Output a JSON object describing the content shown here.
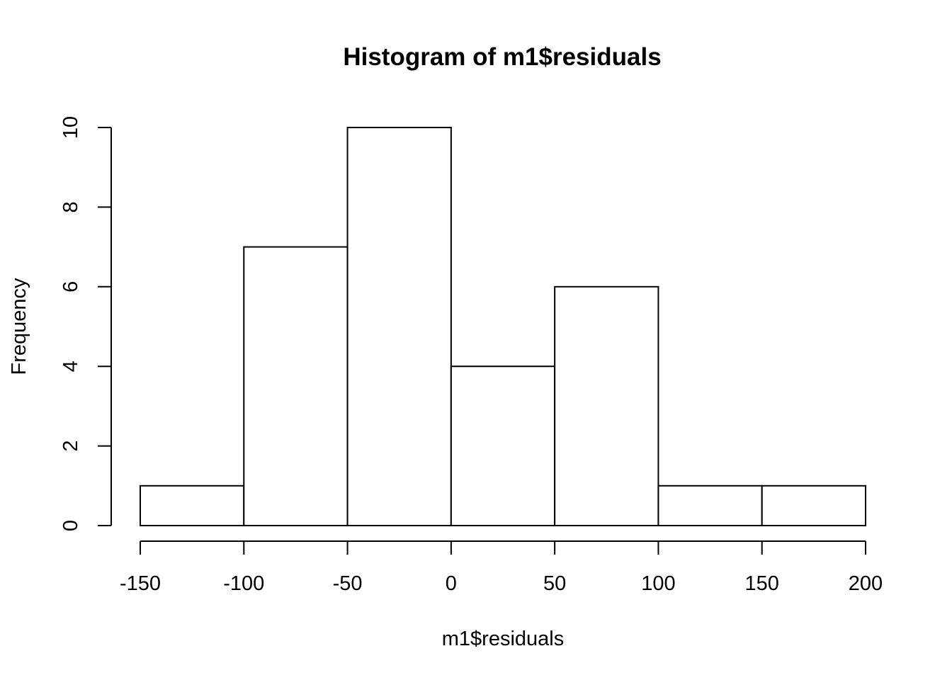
{
  "chart_data": {
    "type": "bar",
    "title": "Histogram of m1$residuals",
    "xlabel": "m1$residuals",
    "ylabel": "Frequency",
    "bins": [
      {
        "start": -150,
        "end": -100,
        "count": 1
      },
      {
        "start": -100,
        "end": -50,
        "count": 7
      },
      {
        "start": -50,
        "end": 0,
        "count": 10
      },
      {
        "start": 0,
        "end": 50,
        "count": 4
      },
      {
        "start": 50,
        "end": 100,
        "count": 6
      },
      {
        "start": 100,
        "end": 150,
        "count": 1
      },
      {
        "start": 150,
        "end": 200,
        "count": 1
      }
    ],
    "xlim": [
      -150,
      200
    ],
    "ylim": [
      0,
      10
    ],
    "x_ticks": [
      "-150",
      "-100",
      "-50",
      "0",
      "50",
      "100",
      "150",
      "200"
    ],
    "y_ticks": [
      "0",
      "2",
      "4",
      "6",
      "8",
      "10"
    ],
    "grid": false,
    "legend": "none",
    "colors": {
      "bar_fill": "#ffffff",
      "bar_stroke": "#000000",
      "axis": "#000000"
    }
  }
}
